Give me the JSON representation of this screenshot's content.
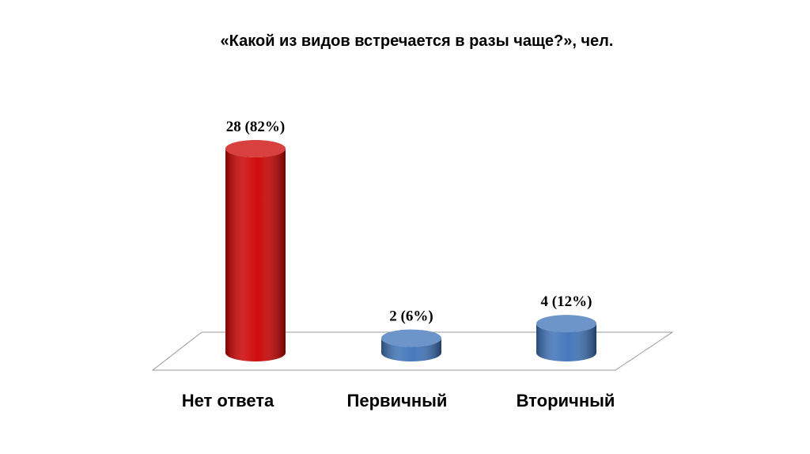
{
  "chart_data": {
    "type": "bar",
    "title": "«Какой из видов встречается в разы чаще?», чел.",
    "categories": [
      "Нет ответа",
      "Первичный",
      "Вторичный"
    ],
    "values": [
      28,
      2,
      4
    ],
    "value_labels": [
      "28 (82%)",
      "2 (6%)",
      "4 (12%)"
    ],
    "colors": [
      "#cc0000",
      "#3d72b8",
      "#3d72b8"
    ]
  }
}
